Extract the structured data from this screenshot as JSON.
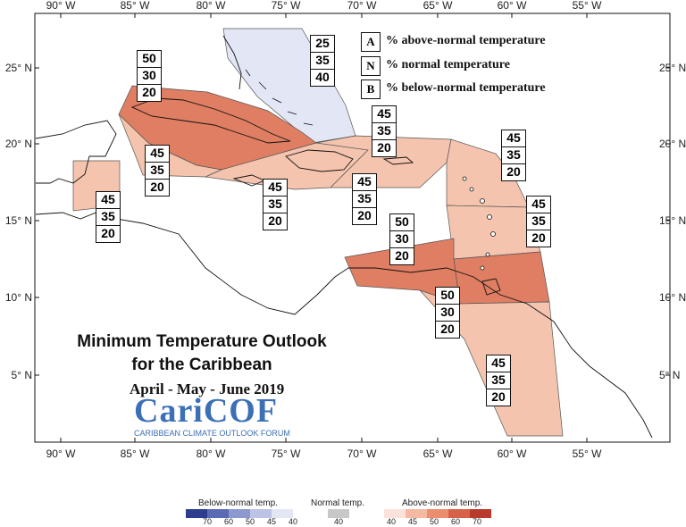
{
  "map": {
    "title_line1": "Minimum Temperature Outlook",
    "title_line2": "for the Caribbean",
    "period": "April - May - June 2019",
    "logo_text": "CariCOF",
    "logo_subtitle": "CARIBBEAN CLIMATE OUTLOOK FORUM"
  },
  "axes": {
    "lon_labels": [
      "90° W",
      "85° W",
      "80° W",
      "75° W",
      "70° W",
      "65° W",
      "60° W",
      "55° W"
    ],
    "lat_labels": [
      "25° N",
      "20° N",
      "15° N",
      "10° N",
      "5° N"
    ]
  },
  "legend": {
    "items": [
      {
        "letter": "A",
        "text": "% above-normal temperature"
      },
      {
        "letter": "N",
        "text": "% normal temperature"
      },
      {
        "letter": "B",
        "text": "% below-normal temperature"
      }
    ]
  },
  "probability_boxes": [
    {
      "region": "bahamas",
      "values": [
        "25",
        "35",
        "40"
      ]
    },
    {
      "region": "cuba",
      "values": [
        "50",
        "30",
        "20"
      ]
    },
    {
      "region": "cayman-western",
      "values": [
        "45",
        "35",
        "20"
      ]
    },
    {
      "region": "belize",
      "values": [
        "45",
        "35",
        "20"
      ]
    },
    {
      "region": "jamaica",
      "values": [
        "45",
        "35",
        "20"
      ]
    },
    {
      "region": "hispaniola-puerto-rico",
      "values": [
        "45",
        "35",
        "20"
      ]
    },
    {
      "region": "hispaniola-south",
      "values": [
        "45",
        "35",
        "20"
      ]
    },
    {
      "region": "northern-leewards",
      "values": [
        "45",
        "35",
        "20"
      ]
    },
    {
      "region": "windwards",
      "values": [
        "45",
        "35",
        "20"
      ]
    },
    {
      "region": "abc-islands",
      "values": [
        "50",
        "30",
        "20"
      ]
    },
    {
      "region": "trinidad-tobago",
      "values": [
        "50",
        "30",
        "20"
      ]
    },
    {
      "region": "guianas",
      "values": [
        "45",
        "35",
        "20"
      ]
    }
  ],
  "color_scale": {
    "below_title": "Below-normal temp.",
    "normal_title": "Normal temp.",
    "above_title": "Above-normal temp.",
    "below_ticks": [
      "70",
      "60",
      "50",
      "45",
      "40"
    ],
    "normal_ticks": [
      "40"
    ],
    "above_ticks": [
      "40",
      "45",
      "50",
      "60",
      "70"
    ],
    "below_colors": [
      "#2c3d8f",
      "#5a6bb5",
      "#8c98d0",
      "#bcc3e6",
      "#e3e7f5"
    ],
    "normal_color": "#c8c8c8",
    "above_colors": [
      "#fbe3da",
      "#f5b9a3",
      "#ec8d70",
      "#d8614a",
      "#b93a2c"
    ]
  },
  "colors": {
    "above_45": "#f5c4ae",
    "above_50": "#df7e62",
    "below_40": "#e3e7f5",
    "land_outline": "#111111"
  }
}
